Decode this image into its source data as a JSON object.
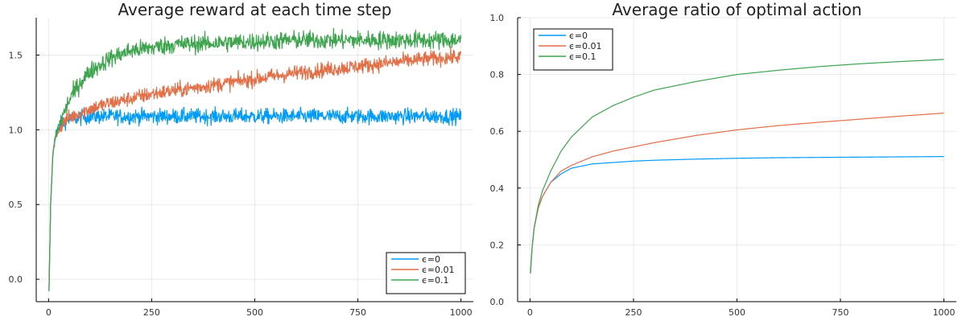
{
  "chart_data": [
    {
      "type": "line",
      "title": "Average reward at each time step",
      "xlabel": "",
      "ylabel": "",
      "xlim": [
        -30,
        1030
      ],
      "ylim": [
        -0.15,
        1.75
      ],
      "xticks": [
        0,
        250,
        500,
        750,
        1000
      ],
      "xtick_labels": [
        "0",
        "250",
        "500",
        "750",
        "1000"
      ],
      "yticks": [
        0.0,
        0.5,
        1.0,
        1.5
      ],
      "ytick_labels": [
        "0.0",
        "0.5",
        "1.0",
        "1.5"
      ],
      "grid": true,
      "legend_position": "bottom-right",
      "series": [
        {
          "name": "ϵ=0",
          "color": "#009AFA",
          "x": [
            1,
            5,
            10,
            15,
            20,
            30,
            40,
            50,
            75,
            100,
            150,
            200,
            250,
            300,
            400,
            500,
            600,
            700,
            800,
            900,
            1000
          ],
          "values": [
            -0.08,
            0.5,
            0.82,
            0.95,
            1.0,
            1.04,
            1.06,
            1.07,
            1.08,
            1.09,
            1.09,
            1.09,
            1.09,
            1.09,
            1.09,
            1.09,
            1.09,
            1.09,
            1.09,
            1.09,
            1.09
          ],
          "noise": 0.025
        },
        {
          "name": "ϵ=0.01",
          "color": "#E36F47",
          "x": [
            1,
            5,
            10,
            15,
            20,
            30,
            40,
            50,
            75,
            100,
            150,
            200,
            250,
            300,
            400,
            500,
            600,
            700,
            800,
            900,
            1000
          ],
          "values": [
            -0.08,
            0.5,
            0.82,
            0.93,
            0.98,
            1.03,
            1.06,
            1.08,
            1.11,
            1.14,
            1.18,
            1.21,
            1.24,
            1.26,
            1.3,
            1.34,
            1.38,
            1.41,
            1.44,
            1.47,
            1.49
          ],
          "noise": 0.025
        },
        {
          "name": "ϵ=0.1",
          "color": "#3EA44E",
          "x": [
            1,
            5,
            10,
            15,
            20,
            30,
            40,
            50,
            75,
            100,
            150,
            200,
            250,
            300,
            400,
            500,
            600,
            700,
            800,
            900,
            1000
          ],
          "values": [
            -0.08,
            0.5,
            0.82,
            0.92,
            0.98,
            1.06,
            1.13,
            1.2,
            1.31,
            1.39,
            1.48,
            1.53,
            1.55,
            1.57,
            1.58,
            1.59,
            1.6,
            1.6,
            1.6,
            1.6,
            1.6
          ],
          "noise": 0.03
        }
      ]
    },
    {
      "type": "line",
      "title": "Average ratio of optimal action",
      "xlabel": "",
      "ylabel": "",
      "xlim": [
        -30,
        1030
      ],
      "ylim": [
        0.0,
        1.0
      ],
      "xticks": [
        0,
        250,
        500,
        750,
        1000
      ],
      "xtick_labels": [
        "0",
        "250",
        "500",
        "750",
        "1000"
      ],
      "yticks": [
        0.0,
        0.2,
        0.4,
        0.6,
        0.8,
        1.0
      ],
      "ytick_labels": [
        "0.0",
        "0.2",
        "0.4",
        "0.6",
        "0.8",
        "1.0"
      ],
      "grid": true,
      "legend_position": "top-left",
      "series": [
        {
          "name": "ϵ=0",
          "color": "#009AFA",
          "x": [
            1,
            5,
            10,
            20,
            30,
            50,
            75,
            100,
            150,
            200,
            250,
            300,
            400,
            500,
            600,
            700,
            800,
            900,
            1000
          ],
          "values": [
            0.1,
            0.19,
            0.26,
            0.33,
            0.37,
            0.42,
            0.45,
            0.47,
            0.485,
            0.49,
            0.495,
            0.498,
            0.502,
            0.505,
            0.507,
            0.508,
            0.509,
            0.51,
            0.511
          ]
        },
        {
          "name": "ϵ=0.01",
          "color": "#E36F47",
          "x": [
            1,
            5,
            10,
            20,
            30,
            50,
            75,
            100,
            150,
            200,
            250,
            300,
            400,
            500,
            600,
            700,
            800,
            900,
            1000
          ],
          "values": [
            0.1,
            0.19,
            0.26,
            0.33,
            0.37,
            0.42,
            0.46,
            0.48,
            0.51,
            0.53,
            0.545,
            0.56,
            0.585,
            0.605,
            0.62,
            0.632,
            0.643,
            0.654,
            0.664
          ]
        },
        {
          "name": "ϵ=0.1",
          "color": "#3EA44E",
          "x": [
            1,
            5,
            10,
            20,
            30,
            50,
            75,
            100,
            150,
            200,
            250,
            300,
            400,
            500,
            600,
            700,
            800,
            900,
            1000
          ],
          "values": [
            0.1,
            0.19,
            0.26,
            0.34,
            0.39,
            0.46,
            0.53,
            0.58,
            0.65,
            0.69,
            0.72,
            0.745,
            0.775,
            0.8,
            0.815,
            0.828,
            0.838,
            0.846,
            0.853
          ]
        }
      ]
    }
  ]
}
